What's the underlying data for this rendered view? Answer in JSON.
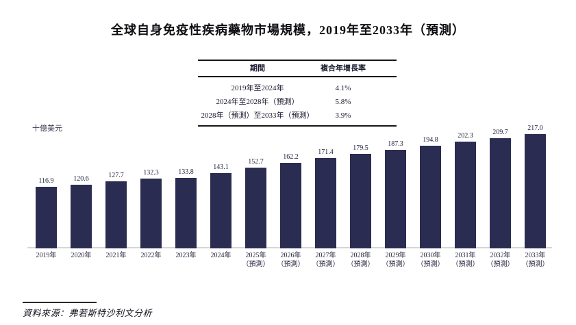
{
  "title": "全球自身免疫性疾病藥物市場規模，2019年至2033年（預測）",
  "cagr_table": {
    "headers": [
      "期間",
      "複合年增長率"
    ],
    "rows": [
      {
        "period": "2019年至2024年",
        "cagr": "4.1%"
      },
      {
        "period": "2024年至2028年（預測）",
        "cagr": "5.8%"
      },
      {
        "period": "2028年（預測）至2033年（預測）",
        "cagr": "3.9%"
      }
    ]
  },
  "chart_data": {
    "type": "bar",
    "title": "全球自身免疫性疾病藥物市場規模，2019年至2033年（預測）",
    "ylabel": "十億美元",
    "xlabel": "",
    "categories": [
      "2019年",
      "2020年",
      "2021年",
      "2022年",
      "2023年",
      "2024年",
      "2025年（預測）",
      "2026年（預測）",
      "2027年（預測）",
      "2028年（預測）",
      "2029年（預測）",
      "2030年（預測）",
      "2031年（預測）",
      "2032年（預測）",
      "2033年（預測）"
    ],
    "x_tick_lines": [
      {
        "year": "2019年",
        "note": ""
      },
      {
        "year": "2020年",
        "note": ""
      },
      {
        "year": "2021年",
        "note": ""
      },
      {
        "year": "2022年",
        "note": ""
      },
      {
        "year": "2023年",
        "note": ""
      },
      {
        "year": "2024年",
        "note": ""
      },
      {
        "year": "2025年",
        "note": "（預測）"
      },
      {
        "year": "2026年",
        "note": "（預測）"
      },
      {
        "year": "2027年",
        "note": "（預測）"
      },
      {
        "year": "2028年",
        "note": "（預測）"
      },
      {
        "year": "2029年",
        "note": "（預測）"
      },
      {
        "year": "2030年",
        "note": "（預測）"
      },
      {
        "year": "2031年",
        "note": "（預測）"
      },
      {
        "year": "2032年",
        "note": "（預測）"
      },
      {
        "year": "2033年",
        "note": "（預測）"
      }
    ],
    "values": [
      116.9,
      120.6,
      127.7,
      132.3,
      133.8,
      143.1,
      152.7,
      162.2,
      171.4,
      179.5,
      187.3,
      194.8,
      202.3,
      209.7,
      217.0
    ],
    "value_labels": [
      "116.9",
      "120.6",
      "127.7",
      "132.3",
      "133.8",
      "143.1",
      "152.7",
      "162.2",
      "171.4",
      "179.5",
      "187.3",
      "194.8",
      "202.3",
      "209.7",
      "217.0"
    ],
    "ylim": [
      0,
      230
    ],
    "grid": false,
    "legend": null,
    "bar_color": "#2b2c52",
    "baseline_color": "#d5d5da"
  },
  "source": "資料來源：弗若斯特沙利文分析"
}
